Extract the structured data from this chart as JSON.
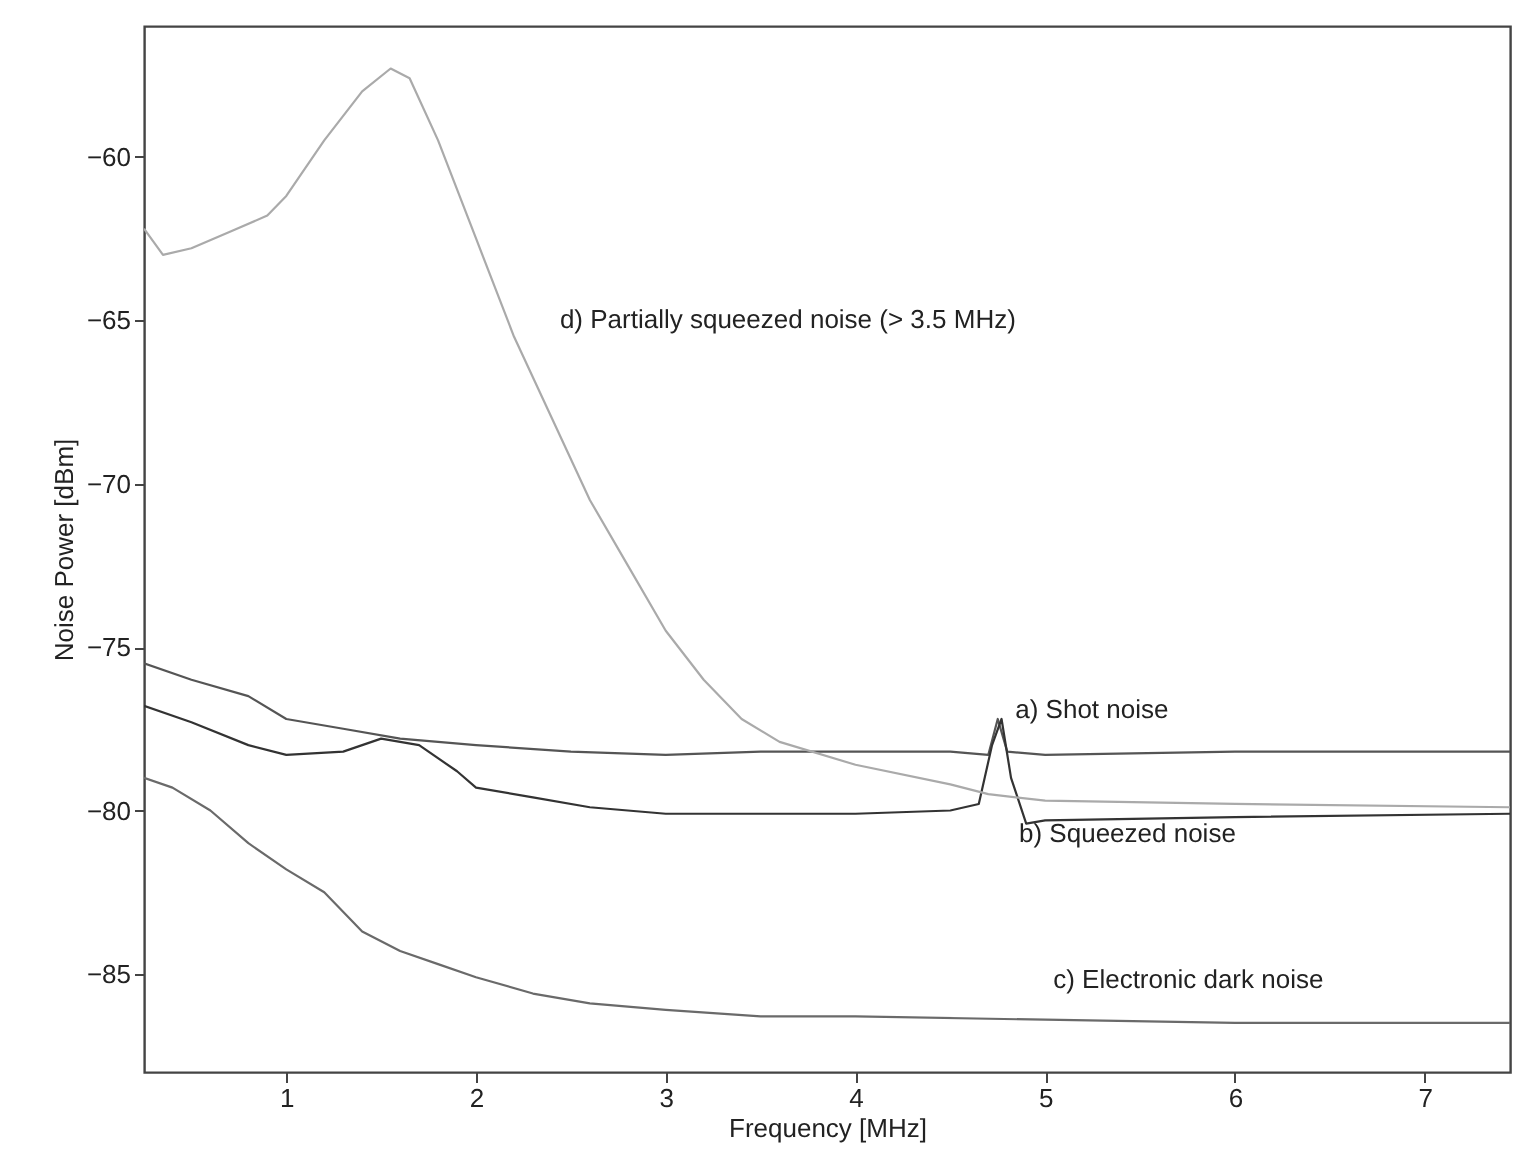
{
  "chart_data": {
    "type": "line",
    "xlabel": "Frequency [MHz]",
    "ylabel": "Noise Power [dBm]",
    "xlim": [
      0.25,
      7.45
    ],
    "ylim": [
      -88,
      -56
    ],
    "xticks": [
      1,
      2,
      3,
      4,
      5,
      6,
      7
    ],
    "yticks": [
      -85,
      -80,
      -75,
      -70,
      -65,
      -60
    ],
    "grid": false,
    "marker": "none",
    "line_style": "solid",
    "series": [
      {
        "name": "a) Shot noise",
        "color": "#555555",
        "x": [
          0.25,
          0.5,
          0.8,
          1.0,
          1.3,
          1.6,
          2.0,
          2.5,
          3.0,
          3.5,
          4.0,
          4.5,
          4.7,
          4.75,
          4.8,
          5.0,
          6.0,
          7.45
        ],
        "values": [
          -75.5,
          -76,
          -76.5,
          -77.2,
          -77.5,
          -77.8,
          -78,
          -78.2,
          -78.3,
          -78.2,
          -78.2,
          -78.2,
          -78.3,
          -77.2,
          -78.2,
          -78.3,
          -78.2,
          -78.2
        ]
      },
      {
        "name": "b) Squeezed noise",
        "color": "#333333",
        "x": [
          0.25,
          0.5,
          0.8,
          1.0,
          1.3,
          1.5,
          1.7,
          1.9,
          2.0,
          2.3,
          2.6,
          3.0,
          3.5,
          4.0,
          4.5,
          4.65,
          4.72,
          4.77,
          4.82,
          4.9,
          5.0,
          6.0,
          7.45
        ],
        "values": [
          -76.8,
          -77.3,
          -78,
          -78.3,
          -78.2,
          -77.8,
          -78,
          -78.8,
          -79.3,
          -79.6,
          -79.9,
          -80.1,
          -80.1,
          -80.1,
          -80,
          -79.8,
          -78,
          -77.2,
          -79,
          -80.4,
          -80.3,
          -80.2,
          -80.1
        ]
      },
      {
        "name": "c) Electronic dark noise",
        "color": "#6a6a6a",
        "x": [
          0.25,
          0.4,
          0.6,
          0.8,
          1.0,
          1.2,
          1.4,
          1.6,
          1.8,
          2.0,
          2.3,
          2.6,
          3.0,
          3.5,
          4.0,
          5.0,
          6.0,
          7.45
        ],
        "values": [
          -79,
          -79.3,
          -80,
          -81,
          -81.8,
          -82.5,
          -83.7,
          -84.3,
          -84.7,
          -85.1,
          -85.6,
          -85.9,
          -86.1,
          -86.3,
          -86.3,
          -86.4,
          -86.5,
          -86.5
        ]
      },
      {
        "name": "d) Partially squeezed noise (> 3.5 MHz)",
        "color": "#aaaaaa",
        "x": [
          0.25,
          0.35,
          0.5,
          0.7,
          0.9,
          1.0,
          1.2,
          1.4,
          1.55,
          1.65,
          1.8,
          2.0,
          2.2,
          2.4,
          2.6,
          2.8,
          3.0,
          3.2,
          3.4,
          3.6,
          4.0,
          4.5,
          4.7,
          5.0,
          6.0,
          7.45
        ],
        "values": [
          -62.2,
          -63,
          -62.8,
          -62.3,
          -61.8,
          -61.2,
          -59.5,
          -58,
          -57.3,
          -57.6,
          -59.5,
          -62.5,
          -65.5,
          -68,
          -70.5,
          -72.5,
          -74.5,
          -76,
          -77.2,
          -77.9,
          -78.6,
          -79.2,
          -79.5,
          -79.7,
          -79.8,
          -79.9
        ]
      }
    ]
  }
}
